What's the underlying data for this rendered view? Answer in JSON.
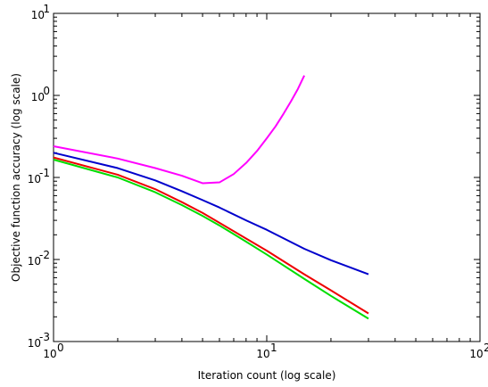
{
  "chart_data": {
    "type": "line",
    "title": "",
    "xlabel": "Iteration count (log scale)",
    "ylabel": "Objective function accuracy (log scale)",
    "xscale": "log",
    "yscale": "log",
    "xlim": [
      1,
      100
    ],
    "ylim": [
      0.001,
      10
    ],
    "grid": false,
    "x_ticks": [
      {
        "value": 1,
        "base": "10",
        "exp": "0"
      },
      {
        "value": 10,
        "base": "10",
        "exp": "1"
      },
      {
        "value": 100,
        "base": "10",
        "exp": "2"
      }
    ],
    "y_ticks": [
      {
        "value": 0.001,
        "base": "10",
        "exp": "-3"
      },
      {
        "value": 0.01,
        "base": "10",
        "exp": "-2"
      },
      {
        "value": 0.1,
        "base": "10",
        "exp": "-1"
      },
      {
        "value": 1,
        "base": "10",
        "exp": "0"
      },
      {
        "value": 10,
        "base": "10",
        "exp": "1"
      }
    ],
    "series": [
      {
        "color": "#ff00ff",
        "x": [
          1,
          2,
          3,
          4,
          5,
          6,
          7,
          8,
          9,
          10,
          11,
          12,
          13,
          14,
          15
        ],
        "y": [
          0.24,
          0.17,
          0.13,
          0.105,
          0.085,
          0.087,
          0.11,
          0.15,
          0.21,
          0.3,
          0.42,
          0.6,
          0.85,
          1.2,
          1.75
        ]
      },
      {
        "color": "#0000cc",
        "x": [
          1,
          2,
          3,
          4,
          5,
          6,
          8,
          10,
          15,
          20,
          30
        ],
        "y": [
          0.2,
          0.13,
          0.092,
          0.068,
          0.053,
          0.043,
          0.03,
          0.023,
          0.0135,
          0.0098,
          0.0066
        ]
      },
      {
        "color": "#ee0000",
        "x": [
          1,
          2,
          3,
          4,
          5,
          6,
          8,
          10,
          15,
          20,
          30
        ],
        "y": [
          0.175,
          0.108,
          0.072,
          0.05,
          0.037,
          0.028,
          0.018,
          0.0128,
          0.0066,
          0.0042,
          0.0022
        ]
      },
      {
        "color": "#00dd00",
        "x": [
          1,
          2,
          3,
          4,
          5,
          6,
          8,
          10,
          15,
          20,
          30
        ],
        "y": [
          0.165,
          0.1,
          0.066,
          0.046,
          0.034,
          0.026,
          0.0165,
          0.0115,
          0.0058,
          0.0036,
          0.0019
        ]
      }
    ]
  }
}
